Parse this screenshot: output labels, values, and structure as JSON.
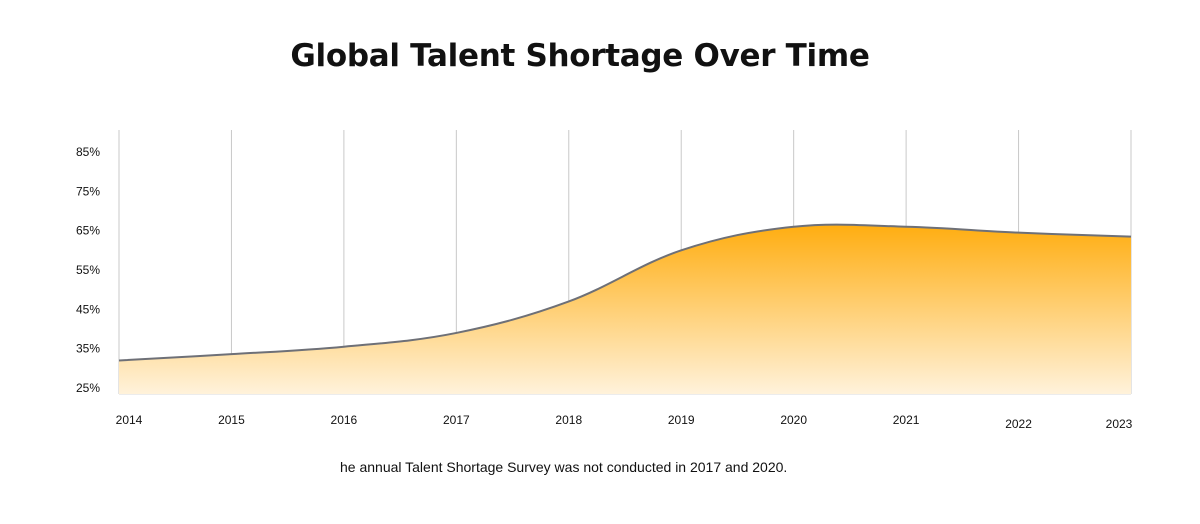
{
  "chart_data": {
    "type": "area",
    "title": "Global Talent Shortage Over Time",
    "x": [
      "2014",
      "2015",
      "2016",
      "2017",
      "2018",
      "2019",
      "2020",
      "2021",
      "2022",
      "2023"
    ],
    "values": [
      32,
      33.6,
      35.5,
      39,
      47,
      60,
      66,
      66,
      64.5,
      63.5
    ],
    "series": [
      {
        "name": "",
        "values": [
          32,
          33.6,
          35.5,
          39,
          47,
          60,
          66,
          66,
          64.5,
          63.5
        ]
      }
    ],
    "y_ticks": [
      {
        "value": 25,
        "label": "25%"
      },
      {
        "value": 35,
        "label": "35%"
      },
      {
        "value": 45,
        "label": "45%"
      },
      {
        "value": 55,
        "label": "55%"
      },
      {
        "value": 65,
        "label": "65%"
      },
      {
        "value": 75,
        "label": "75%"
      },
      {
        "value": 85,
        "label": "85%"
      }
    ],
    "ylim": [
      23,
      91
    ],
    "xlabel": "",
    "ylabel": "",
    "grid": "vertical",
    "legend": "none",
    "note": "he annual Talent Shortage Survey was not conducted in 2017 and 2020.",
    "colors": {
      "fill_top": "#FFAD10",
      "fill_bottom": "#FFF2DB",
      "line": "#6E7077",
      "grid": "#C8C8C8"
    }
  }
}
